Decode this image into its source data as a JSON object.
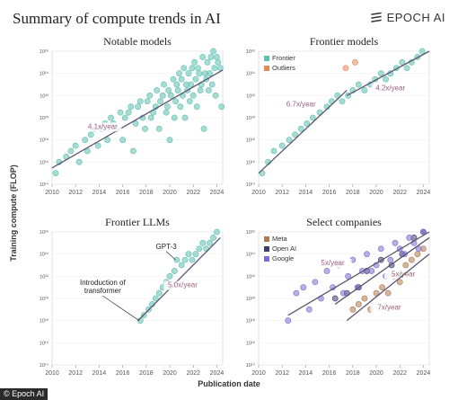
{
  "page": {
    "title": "Summary of compute trends in AI",
    "brand": "EPOCH AI",
    "ylabel": "Training compute (FLOP)",
    "xlabel": "Publication date",
    "credit": "© Epoch AI"
  },
  "colors": {
    "teal": "#5fc0b0",
    "orange": "#e08a5a",
    "navy": "#3d3d6e",
    "purple": "#7a6fd0",
    "meta_brown": "#b07a50",
    "trend_line": "#5a5470",
    "annotation": "#a0607a"
  },
  "chart_data": [
    {
      "type": "scatter",
      "title": "Notable models",
      "xlim": [
        2010,
        2024.5
      ],
      "ylim": [
        100000000000000.0,
        1e+26
      ],
      "xticks": [
        "2010",
        "2012",
        "2014",
        "2016",
        "2018",
        "2020",
        "2022",
        "2024"
      ],
      "yticks": [
        "10¹⁴",
        "10¹⁶",
        "10¹⁸",
        "10²⁰",
        "10²²",
        "10²⁴",
        "10²⁶"
      ],
      "series": [
        {
          "color": "teal",
          "points": [
            [
              2010.3,
              1000000000000000.0
            ],
            [
              2010.6,
              1e+16
            ],
            [
              2011.2,
              3e+16
            ],
            [
              2011.6,
              1e+17
            ],
            [
              2012.0,
              3e+17
            ],
            [
              2012.3,
              1e+16
            ],
            [
              2012.8,
              1e+18
            ],
            [
              2013.0,
              1e+17
            ],
            [
              2013.3,
              3e+18
            ],
            [
              2013.6,
              1e+19
            ],
            [
              2013.9,
              3e+17
            ],
            [
              2014.2,
              1e+19
            ],
            [
              2014.5,
              3e+19
            ],
            [
              2014.7,
              1e+18
            ],
            [
              2015.0,
              1e+20
            ],
            [
              2015.2,
              3e+19
            ],
            [
              2015.5,
              1e+19
            ],
            [
              2015.8,
              3e+20
            ],
            [
              2016.0,
              1e+18
            ],
            [
              2016.2,
              1e+20
            ],
            [
              2016.5,
              3e+20
            ],
            [
              2016.7,
              1e+21
            ],
            [
              2016.9,
              1e+17
            ],
            [
              2017.1,
              3e+19
            ],
            [
              2017.3,
              1e+21
            ],
            [
              2017.5,
              3e+21
            ],
            [
              2017.7,
              1e+20
            ],
            [
              2017.9,
              1e+19
            ],
            [
              2018.1,
              3e+21
            ],
            [
              2018.3,
              1e+22
            ],
            [
              2018.4,
              1e+20
            ],
            [
              2018.6,
              3e+20
            ],
            [
              2018.8,
              1e+21
            ],
            [
              2018.9,
              3e+22
            ],
            [
              2019.1,
              1e+19
            ],
            [
              2019.2,
              3e+21
            ],
            [
              2019.4,
              1e+22
            ],
            [
              2019.5,
              1e+23
            ],
            [
              2019.7,
              3e+20
            ],
            [
              2019.8,
              1e+21
            ],
            [
              2019.9,
              3e+22
            ],
            [
              2020.0,
              1e+18
            ],
            [
              2020.1,
              1e+22
            ],
            [
              2020.3,
              3e+23
            ],
            [
              2020.4,
              1e+20
            ],
            [
              2020.5,
              3e+21
            ],
            [
              2020.6,
              1e+23
            ],
            [
              2020.7,
              3e+22
            ],
            [
              2020.8,
              1e+24
            ],
            [
              2020.9,
              1e+21
            ],
            [
              2021.0,
              3e+23
            ],
            [
              2021.1,
              1e+22
            ],
            [
              2021.2,
              3e+24
            ],
            [
              2021.3,
              1e+20
            ],
            [
              2021.4,
              1e+23
            ],
            [
              2021.5,
              3e+22
            ],
            [
              2021.6,
              1e+24
            ],
            [
              2021.7,
              3e+21
            ],
            [
              2021.8,
              1e+23
            ],
            [
              2021.9,
              3e+24
            ],
            [
              2022.0,
              1e+22
            ],
            [
              2022.1,
              1e+25
            ],
            [
              2022.2,
              3e+23
            ],
            [
              2022.3,
              1e+21
            ],
            [
              2022.4,
              3e+24
            ],
            [
              2022.5,
              1e+24
            ],
            [
              2022.6,
              3e+22
            ],
            [
              2022.7,
              1e+23
            ],
            [
              2022.8,
              3e+25
            ],
            [
              2022.9,
              1e+19
            ],
            [
              2023.0,
              1e+24
            ],
            [
              2023.1,
              3e+23
            ],
            [
              2023.2,
              1e+25
            ],
            [
              2023.3,
              3e+22
            ],
            [
              2023.4,
              1e+24
            ],
            [
              2023.5,
              3e+25
            ],
            [
              2023.6,
              1e+23
            ],
            [
              2023.7,
              1e+26
            ],
            [
              2023.8,
              3e+24
            ],
            [
              2023.9,
              1e+22
            ],
            [
              2024.0,
              3e+25
            ],
            [
              2024.1,
              1e+25
            ],
            [
              2024.3,
              3e+24
            ],
            [
              2024.4,
              1e+21
            ]
          ]
        }
      ],
      "trends": [
        {
          "from": [
            2010,
            3000000000000000.0
          ],
          "to": [
            2024.5,
            2e+24
          ],
          "label": "4.1x/year",
          "label_at": [
            2014.3,
            1e+19
          ]
        }
      ]
    },
    {
      "type": "scatter",
      "title": "Frontier models",
      "xlim": [
        2010,
        2024.5
      ],
      "ylim": [
        100000000000000.0,
        1e+26
      ],
      "xticks": [
        "2010",
        "2012",
        "2014",
        "2016",
        "2018",
        "2020",
        "2022",
        "2024"
      ],
      "yticks": [
        "10¹⁴",
        "10¹⁶",
        "10¹⁸",
        "10²⁰",
        "10²²",
        "10²⁴",
        "10²⁶"
      ],
      "legend": {
        "position": "top-left",
        "entries": [
          "Frontier",
          "Outliers"
        ]
      },
      "series": [
        {
          "name": "Frontier",
          "color": "teal",
          "points": [
            [
              2010.3,
              1000000000000000.0
            ],
            [
              2010.8,
              1e+16
            ],
            [
              2011.3,
              1e+17
            ],
            [
              2012.0,
              3e+17
            ],
            [
              2012.6,
              1e+18
            ],
            [
              2013.1,
              3e+18
            ],
            [
              2013.6,
              1e+19
            ],
            [
              2014.1,
              3e+19
            ],
            [
              2014.6,
              1e+20
            ],
            [
              2015.2,
              3e+20
            ],
            [
              2015.8,
              1e+21
            ],
            [
              2016.2,
              3e+21
            ],
            [
              2016.7,
              1e+22
            ],
            [
              2017.1,
              3e+21
            ],
            [
              2017.6,
              1e+22
            ],
            [
              2018.0,
              3e+22
            ],
            [
              2018.5,
              1e+23
            ],
            [
              2019.0,
              3e+22
            ],
            [
              2019.5,
              1e+23
            ],
            [
              2019.9,
              3e+23
            ],
            [
              2020.4,
              1e+24
            ],
            [
              2020.8,
              3e+23
            ],
            [
              2021.2,
              1e+24
            ],
            [
              2021.7,
              3e+24
            ],
            [
              2022.2,
              1e+25
            ],
            [
              2022.6,
              3e+24
            ],
            [
              2023.0,
              1e+25
            ],
            [
              2023.5,
              3e+25
            ],
            [
              2023.9,
              1e+26
            ]
          ]
        },
        {
          "name": "Outliers",
          "color": "orange",
          "points": [
            [
              2017.4,
              3e+24
            ],
            [
              2018.2,
              1e+25
            ]
          ]
        }
      ],
      "trends": [
        {
          "from": [
            2010,
            1000000000000000.0
          ],
          "to": [
            2017.5,
            3e+22
          ],
          "label": "6.7x/year",
          "label_at": [
            2013.6,
            1e+21
          ]
        },
        {
          "from": [
            2017.5,
            1e+22
          ],
          "to": [
            2024.5,
            1e+26
          ],
          "label": "4.2x/year",
          "label_at": [
            2021.2,
            3e+22
          ]
        }
      ]
    },
    {
      "type": "scatter",
      "title": "Frontier LLMs",
      "xlim": [
        2010,
        2024.5
      ],
      "ylim": [
        100000000000000.0,
        1e+26
      ],
      "xticks": [
        "2010",
        "2012",
        "2014",
        "2016",
        "2018",
        "2020",
        "2022",
        "2024"
      ],
      "yticks": [
        "10¹⁴",
        "10¹⁶",
        "10¹⁸",
        "10²⁰",
        "10²²",
        "10²⁴",
        "10²⁶"
      ],
      "series": [
        {
          "color": "teal",
          "points": [
            [
              2017.5,
              1e+18
            ],
            [
              2017.8,
              3e+18
            ],
            [
              2018.2,
              1e+19
            ],
            [
              2018.5,
              3e+19
            ],
            [
              2018.8,
              1e+20
            ],
            [
              2019.1,
              3e+20
            ],
            [
              2019.4,
              1e+21
            ],
            [
              2019.7,
              3e+21
            ],
            [
              2020.0,
              1e+22
            ],
            [
              2020.4,
              3e+22
            ],
            [
              2020.6,
              3e+23
            ],
            [
              2021.0,
              1e+23
            ],
            [
              2021.3,
              3e+23
            ],
            [
              2021.6,
              1e+24
            ],
            [
              2021.9,
              3e+23
            ],
            [
              2022.2,
              1e+24
            ],
            [
              2022.5,
              3e+24
            ],
            [
              2022.8,
              1e+25
            ],
            [
              2023.1,
              3e+24
            ],
            [
              2023.4,
              1e+25
            ],
            [
              2023.7,
              3e+25
            ],
            [
              2024.0,
              1e+26
            ]
          ]
        }
      ],
      "trends": [
        {
          "from": [
            2017.3,
            1e+18
          ],
          "to": [
            2024.3,
            3e+25
          ],
          "label": "5.0x/year",
          "label_at": [
            2021.1,
            1e+21
          ]
        }
      ],
      "annotations": [
        {
          "text": [
            "GPT-3"
          ],
          "at": [
            2019.7,
            3e+24
          ],
          "target": [
            2020.5,
            3e+23
          ]
        },
        {
          "text": [
            "Introduction of",
            "transformer"
          ],
          "at": [
            2014.3,
            3e+20
          ],
          "target": [
            2017.4,
            1e+18
          ]
        }
      ]
    },
    {
      "type": "scatter",
      "title": "Select companies",
      "xlim": [
        2010,
        2024.5
      ],
      "ylim": [
        100000000000000.0,
        1e+26
      ],
      "xticks": [
        "2010",
        "2012",
        "2014",
        "2016",
        "2018",
        "2020",
        "2022",
        "2024"
      ],
      "yticks": [
        "10¹⁴",
        "10¹⁶",
        "10¹⁸",
        "10²⁰",
        "10²²",
        "10²⁴",
        "10²⁶"
      ],
      "legend": {
        "position": "top-left",
        "entries": [
          "Meta",
          "Open AI",
          "Google"
        ]
      },
      "series": [
        {
          "name": "Meta",
          "color": "meta_brown",
          "points": [
            [
              2018.0,
              1e+19
            ],
            [
              2018.5,
              3e+19
            ],
            [
              2019.0,
              1e+20
            ],
            [
              2019.5,
              1e+19
            ],
            [
              2020.0,
              3e+20
            ],
            [
              2020.5,
              1e+21
            ],
            [
              2021.0,
              3e+20
            ],
            [
              2021.5,
              1e+22
            ],
            [
              2022.0,
              3e+21
            ],
            [
              2022.5,
              1e+23
            ],
            [
              2023.0,
              3e+23
            ],
            [
              2023.5,
              1e+24
            ],
            [
              2024.0,
              3e+24
            ]
          ]
        },
        {
          "name": "Open AI",
          "color": "navy",
          "points": [
            [
              2016.5,
              1e+20
            ],
            [
              2017.5,
              3e+20
            ],
            [
              2018.5,
              1e+21
            ],
            [
              2019.2,
              3e+22
            ],
            [
              2020.4,
              3e+23
            ],
            [
              2021.3,
              1e+23
            ],
            [
              2022.2,
              1e+24
            ],
            [
              2023.2,
              3e+25
            ],
            [
              2024.0,
              1e+26
            ]
          ]
        },
        {
          "name": "Google",
          "color": "purple",
          "points": [
            [
              2012.5,
              1e+18
            ],
            [
              2013.2,
              3e+20
            ],
            [
              2013.8,
              1e+21
            ],
            [
              2014.3,
              1e+19
            ],
            [
              2014.8,
              3e+21
            ],
            [
              2015.3,
              1e+20
            ],
            [
              2015.8,
              3e+22
            ],
            [
              2016.3,
              1e+21
            ],
            [
              2016.8,
              1e+23
            ],
            [
              2017.2,
              3e+20
            ],
            [
              2017.6,
              1e+22
            ],
            [
              2018.0,
              3e+23
            ],
            [
              2018.4,
              1e+21
            ],
            [
              2018.8,
              3e+22
            ],
            [
              2019.2,
              1e+24
            ],
            [
              2019.6,
              3e+22
            ],
            [
              2020.0,
              1e+23
            ],
            [
              2020.4,
              3e+24
            ],
            [
              2020.8,
              1e+22
            ],
            [
              2021.2,
              3e+23
            ],
            [
              2021.6,
              1e+25
            ],
            [
              2022.0,
              3e+24
            ],
            [
              2022.4,
              1e+24
            ],
            [
              2022.8,
              3e+25
            ],
            [
              2023.2,
              1e+25
            ],
            [
              2023.6,
              3e+24
            ],
            [
              2024.0,
              1e+26
            ]
          ]
        }
      ],
      "trends": [
        {
          "from": [
            2012.5,
            3e+18
          ],
          "to": [
            2024.5,
            1e+26
          ],
          "label": "5x/year",
          "label_at": [
            2016.3,
            1e+23
          ]
        },
        {
          "from": [
            2016.5,
            3e+19
          ],
          "to": [
            2024.5,
            3e+25
          ],
          "label": "5x/year",
          "label_at": [
            2022.3,
            1e+22
          ]
        },
        {
          "from": [
            2017.5,
            1e+18
          ],
          "to": [
            2024.5,
            1e+24
          ],
          "label": "7x/year",
          "label_at": [
            2021.1,
            1e+19
          ]
        }
      ]
    }
  ]
}
